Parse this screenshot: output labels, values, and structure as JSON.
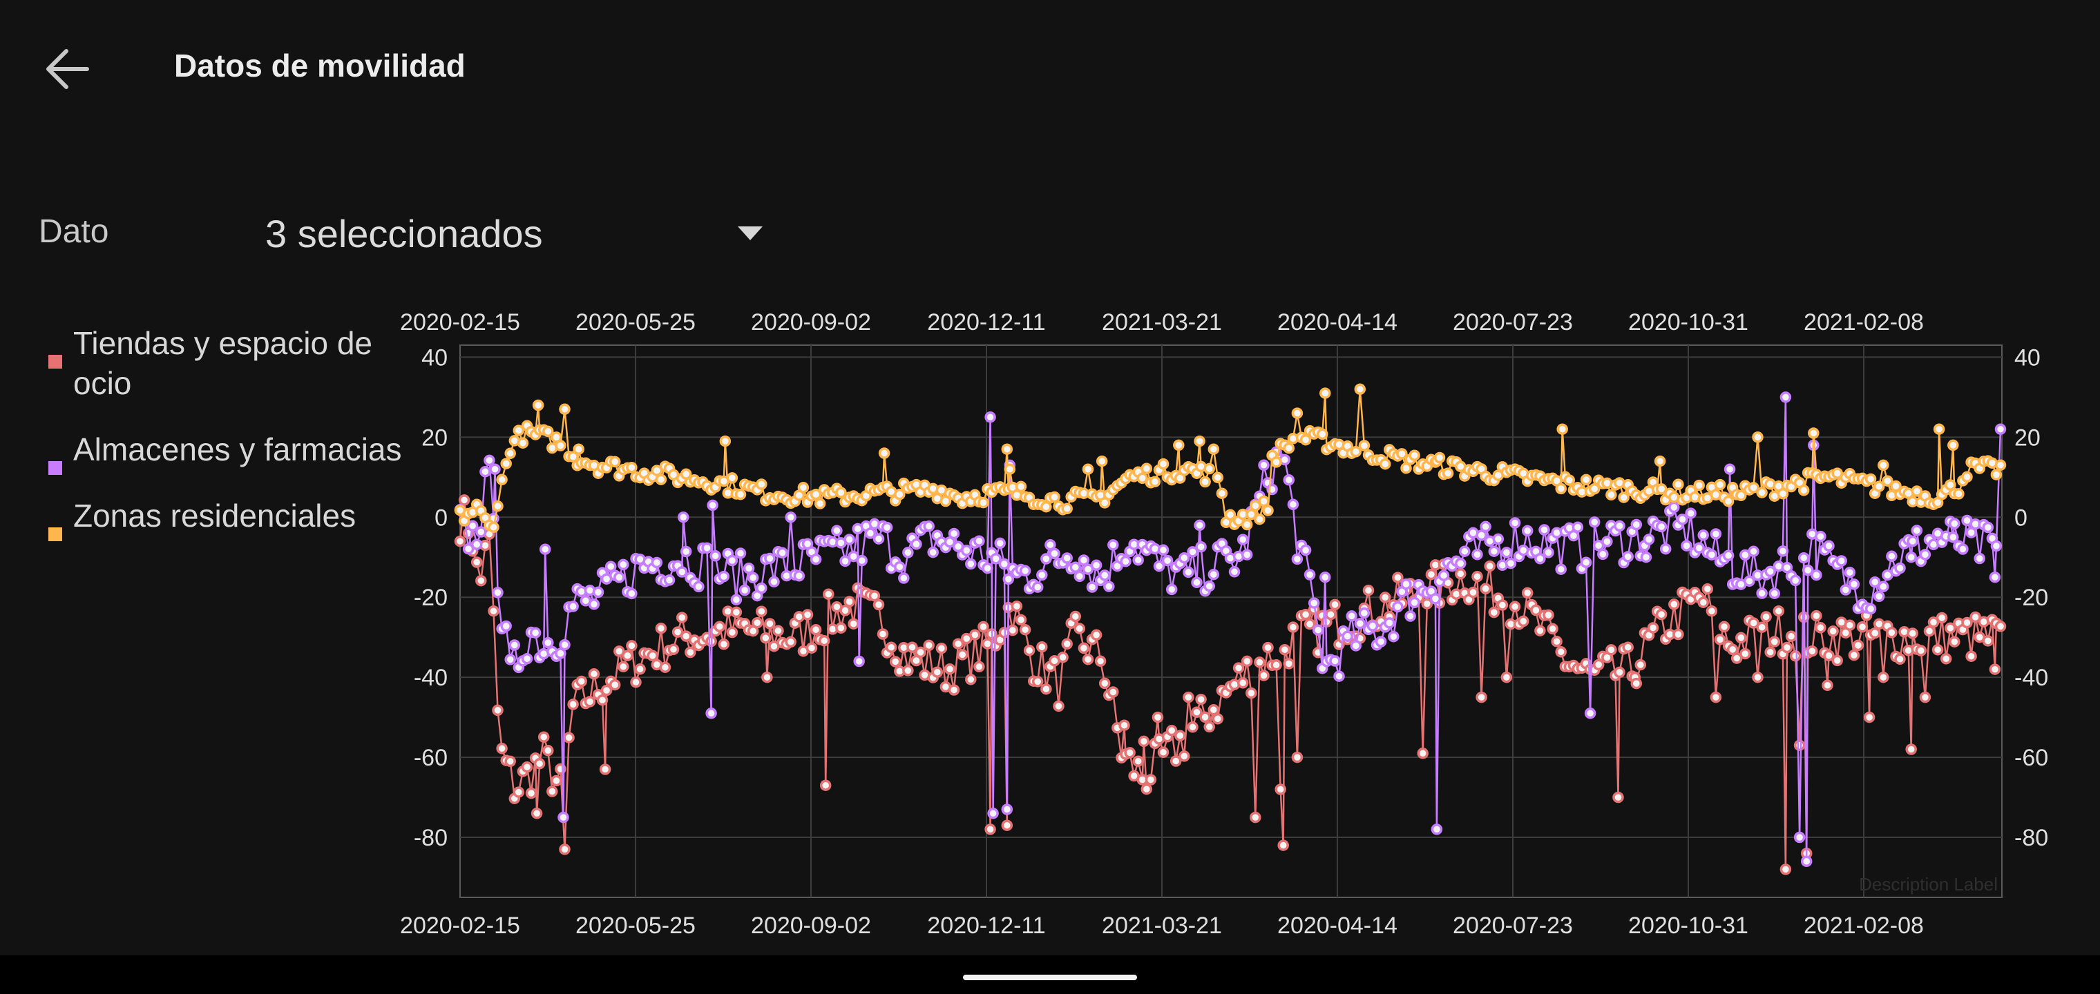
{
  "header": {
    "title": "Datos de movilidad",
    "back_icon": "arrow-left-icon"
  },
  "filter": {
    "label": "Dato",
    "selected": "3 seleccionados",
    "caret_icon": "caret-down-icon"
  },
  "legend": [
    {
      "label": "Tiendas y espacio de ocio",
      "color": "#e57373"
    },
    {
      "label": "Almacenes y farmacias",
      "color": "#c77dff"
    },
    {
      "label": "Zonas residenciales",
      "color": "#ffb74d"
    }
  ],
  "chart_data": {
    "type": "line",
    "markers": true,
    "grid": true,
    "legend_position": "left",
    "ylim": [
      -95,
      43
    ],
    "y_ticks": [
      40,
      20,
      0,
      -20,
      -40,
      -60,
      -80
    ],
    "x_range": [
      "2020-02-15",
      "2021-04-12"
    ],
    "x_ticks": [
      "2020-02-15",
      "2020-05-25",
      "2020-09-02",
      "2020-12-11",
      "2021-03-21",
      "2020-04-14",
      "2020-07-23",
      "2020-10-31",
      "2021-02-08"
    ],
    "description": "Description Label",
    "series": [
      {
        "name": "Tiendas y espacio de ocio",
        "color": "#e57373",
        "keypoints": [
          [
            0,
            0
          ],
          [
            8,
            -2
          ],
          [
            14,
            -20
          ],
          [
            18,
            -5
          ],
          [
            22,
            -8
          ],
          [
            26,
            -45
          ],
          [
            30,
            -60
          ],
          [
            40,
            -68
          ],
          [
            60,
            -60
          ],
          [
            75,
            -70
          ],
          [
            80,
            -48
          ],
          [
            100,
            -42
          ],
          [
            130,
            -35
          ],
          [
            160,
            -30
          ],
          [
            200,
            -28
          ],
          [
            240,
            -30
          ],
          [
            280,
            -22
          ],
          [
            300,
            -25
          ],
          [
            320,
            -35
          ],
          [
            350,
            -38
          ],
          [
            380,
            -32
          ],
          [
            395,
            -22
          ],
          [
            410,
            -35
          ],
          [
            430,
            -42
          ],
          [
            440,
            -30
          ],
          [
            460,
            -35
          ],
          [
            475,
            -60
          ],
          [
            490,
            -65
          ],
          [
            520,
            -55
          ],
          [
            560,
            -40
          ],
          [
            600,
            -30
          ],
          [
            640,
            -25
          ],
          [
            680,
            -20
          ],
          [
            720,
            -15
          ],
          [
            760,
            -22
          ],
          [
            780,
            -30
          ],
          [
            790,
            -35
          ],
          [
            810,
            -40
          ],
          [
            840,
            -38
          ],
          [
            860,
            -28
          ],
          [
            890,
            -20
          ],
          [
            910,
            -32
          ],
          [
            930,
            -30
          ],
          [
            950,
            -28
          ],
          [
            965,
            -30
          ]
        ],
        "outliers": [
          [
            55,
            -74
          ],
          [
            75,
            -83
          ],
          [
            104,
            -63
          ],
          [
            220,
            -40
          ],
          [
            262,
            -67
          ],
          [
            380,
            -78
          ],
          [
            392,
            -77
          ],
          [
            476,
            -52
          ],
          [
            490,
            -56
          ],
          [
            500,
            -50
          ],
          [
            522,
            -45
          ],
          [
            570,
            -75
          ],
          [
            588,
            -68
          ],
          [
            590,
            -82
          ],
          [
            600,
            -60
          ],
          [
            690,
            -59
          ],
          [
            732,
            -45
          ],
          [
            750,
            -40
          ],
          [
            830,
            -70
          ],
          [
            842,
            -40
          ],
          [
            900,
            -45
          ],
          [
            930,
            -40
          ],
          [
            950,
            -88
          ],
          [
            960,
            -57
          ],
          [
            965,
            -84
          ],
          [
            980,
            -42
          ],
          [
            1010,
            -50
          ],
          [
            1020,
            -40
          ],
          [
            1040,
            -58
          ],
          [
            1050,
            -45
          ],
          [
            1100,
            -38
          ]
        ]
      },
      {
        "name": "Almacenes y farmacias",
        "color": "#c77dff",
        "keypoints": [
          [
            0,
            -3
          ],
          [
            10,
            -5
          ],
          [
            16,
            2
          ],
          [
            20,
            10
          ],
          [
            24,
            5
          ],
          [
            28,
            -20
          ],
          [
            36,
            -40
          ],
          [
            50,
            -28
          ],
          [
            60,
            -32
          ],
          [
            74,
            -28
          ],
          [
            80,
            -22
          ],
          [
            100,
            -20
          ],
          [
            130,
            -12
          ],
          [
            160,
            -10
          ],
          [
            200,
            -15
          ],
          [
            240,
            -12
          ],
          [
            280,
            -8
          ],
          [
            300,
            -5
          ],
          [
            320,
            -10
          ],
          [
            340,
            -5
          ],
          [
            360,
            -8
          ],
          [
            380,
            -10
          ],
          [
            400,
            -15
          ],
          [
            420,
            -12
          ],
          [
            440,
            -8
          ],
          [
            460,
            -15
          ],
          [
            480,
            -5
          ],
          [
            500,
            -12
          ],
          [
            520,
            -15
          ],
          [
            540,
            -12
          ],
          [
            560,
            -10
          ],
          [
            580,
            12
          ],
          [
            590,
            15
          ],
          [
            600,
            -5
          ],
          [
            610,
            -20
          ],
          [
            620,
            -38
          ],
          [
            640,
            -30
          ],
          [
            660,
            -28
          ],
          [
            680,
            -20
          ],
          [
            700,
            -15
          ],
          [
            720,
            -10
          ],
          [
            760,
            -5
          ],
          [
            800,
            -8
          ],
          [
            840,
            -5
          ],
          [
            880,
            -3
          ],
          [
            900,
            -10
          ],
          [
            930,
            -15
          ],
          [
            950,
            -12
          ],
          [
            970,
            -8
          ],
          [
            990,
            -15
          ],
          [
            1010,
            -18
          ],
          [
            1030,
            -10
          ],
          [
            1060,
            -5
          ],
          [
            1100,
            -8
          ]
        ],
        "outliers": [
          [
            25,
            12
          ],
          [
            61,
            -8
          ],
          [
            74,
            -75
          ],
          [
            160,
            0
          ],
          [
            180,
            -49
          ],
          [
            181,
            3
          ],
          [
            237,
            0
          ],
          [
            286,
            -36
          ],
          [
            380,
            25
          ],
          [
            382,
            -74
          ],
          [
            392,
            -73
          ],
          [
            394,
            13
          ],
          [
            530,
            -2
          ],
          [
            620,
            -15
          ],
          [
            700,
            -78
          ],
          [
            810,
            -49
          ],
          [
            850,
            -10
          ],
          [
            910,
            12
          ],
          [
            950,
            30
          ],
          [
            960,
            -80
          ],
          [
            965,
            -86
          ],
          [
            970,
            18
          ],
          [
            1040,
            -10
          ],
          [
            1070,
            -5
          ],
          [
            1100,
            -15
          ],
          [
            1104,
            22
          ]
        ]
      },
      {
        "name": "Zonas residenciales",
        "color": "#ffb74d",
        "keypoints": [
          [
            0,
            0
          ],
          [
            12,
            2
          ],
          [
            22,
            -3
          ],
          [
            28,
            5
          ],
          [
            36,
            18
          ],
          [
            46,
            21
          ],
          [
            60,
            20
          ],
          [
            76,
            18
          ],
          [
            82,
            15
          ],
          [
            100,
            13
          ],
          [
            140,
            11
          ],
          [
            180,
            9
          ],
          [
            220,
            6
          ],
          [
            260,
            5
          ],
          [
            300,
            6
          ],
          [
            340,
            7
          ],
          [
            360,
            5
          ],
          [
            380,
            6
          ],
          [
            400,
            6
          ],
          [
            430,
            4
          ],
          [
            460,
            5
          ],
          [
            480,
            10
          ],
          [
            500,
            11
          ],
          [
            520,
            12
          ],
          [
            545,
            10
          ],
          [
            548,
            0
          ],
          [
            565,
            0
          ],
          [
            580,
            3
          ],
          [
            582,
            15
          ],
          [
            600,
            20
          ],
          [
            620,
            19
          ],
          [
            640,
            17
          ],
          [
            680,
            14
          ],
          [
            720,
            12
          ],
          [
            760,
            10
          ],
          [
            800,
            8
          ],
          [
            840,
            7
          ],
          [
            880,
            6
          ],
          [
            920,
            6
          ],
          [
            950,
            8
          ],
          [
            980,
            10
          ],
          [
            1010,
            8
          ],
          [
            1040,
            6
          ],
          [
            1060,
            5
          ],
          [
            1075,
            8
          ],
          [
            1080,
            12
          ],
          [
            1100,
            12
          ]
        ],
        "outliers": [
          [
            56,
            28
          ],
          [
            75,
            27
          ],
          [
            85,
            17
          ],
          [
            190,
            19
          ],
          [
            304,
            16
          ],
          [
            392,
            17
          ],
          [
            394,
            12
          ],
          [
            450,
            12
          ],
          [
            460,
            14
          ],
          [
            515,
            18
          ],
          [
            530,
            19
          ],
          [
            540,
            17
          ],
          [
            600,
            26
          ],
          [
            620,
            31
          ],
          [
            645,
            32
          ],
          [
            700,
            14
          ],
          [
            790,
            22
          ],
          [
            860,
            14
          ],
          [
            930,
            20
          ],
          [
            970,
            21
          ],
          [
            1020,
            13
          ],
          [
            1060,
            22
          ],
          [
            1070,
            18
          ]
        ]
      }
    ]
  }
}
